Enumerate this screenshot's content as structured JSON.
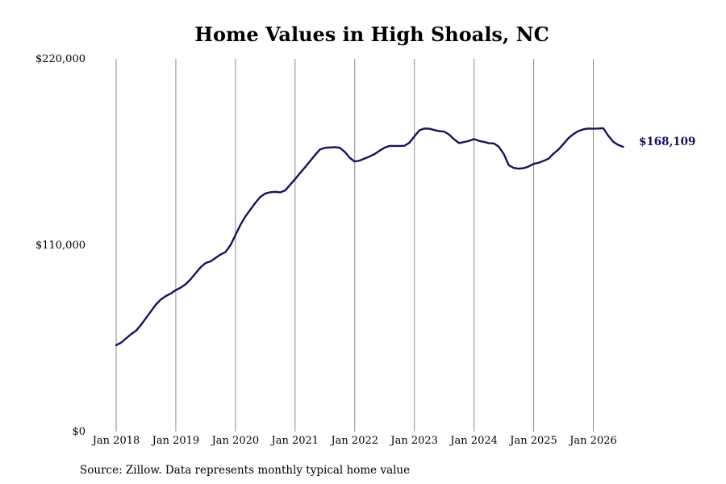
{
  "chart_data": {
    "type": "line",
    "title": "Home Values in High Shoals, NC",
    "source": "Source: Zillow. Data represents monthly typical home value",
    "ylim": [
      0,
      220000
    ],
    "yticks": [
      {
        "value": 0,
        "label": "$0"
      },
      {
        "value": 110000,
        "label": "$110,000"
      },
      {
        "value": 220000,
        "label": "$220,000"
      }
    ],
    "xticks": [
      {
        "value": "2018-01",
        "label": "Jan 2018"
      },
      {
        "value": "2019-01",
        "label": "Jan 2019"
      },
      {
        "value": "2020-01",
        "label": "Jan 2020"
      },
      {
        "value": "2021-01",
        "label": "Jan 2021"
      },
      {
        "value": "2022-01",
        "label": "Jan 2022"
      },
      {
        "value": "2023-01",
        "label": "Jan 2023"
      },
      {
        "value": "2024-01",
        "label": "Jan 2024"
      },
      {
        "value": "2025-01",
        "label": "Jan 2025"
      },
      {
        "value": "2026-01",
        "label": "Jan 2026"
      }
    ],
    "vertical_grid": true,
    "line_color": "#14145e",
    "end_label": "$168,109",
    "series": [
      {
        "x": [
          "2018-01",
          "2018-02",
          "2018-03",
          "2018-04",
          "2018-05",
          "2018-06",
          "2018-07",
          "2018-08",
          "2018-09",
          "2018-10",
          "2018-11",
          "2018-12",
          "2019-01",
          "2019-02",
          "2019-03",
          "2019-04",
          "2019-05",
          "2019-06",
          "2019-07",
          "2019-08",
          "2019-09",
          "2019-10",
          "2019-11",
          "2019-12",
          "2020-01",
          "2020-02",
          "2020-03",
          "2020-04",
          "2020-05",
          "2020-06",
          "2020-07",
          "2020-08",
          "2020-09",
          "2020-10",
          "2020-11",
          "2020-12",
          "2021-01",
          "2021-02",
          "2021-03",
          "2021-04",
          "2021-05",
          "2021-06",
          "2021-07",
          "2021-08",
          "2021-09",
          "2021-10",
          "2021-11",
          "2021-12",
          "2022-01",
          "2022-02",
          "2022-03",
          "2022-04",
          "2022-05",
          "2022-06",
          "2022-07",
          "2022-08",
          "2022-09",
          "2022-10",
          "2022-11",
          "2022-12",
          "2023-01",
          "2023-02",
          "2023-03",
          "2023-04",
          "2023-05",
          "2023-06",
          "2023-07",
          "2023-08",
          "2023-09",
          "2023-10",
          "2023-11",
          "2023-12",
          "2024-01",
          "2024-02",
          "2024-03",
          "2024-04",
          "2024-05",
          "2024-06",
          "2024-07",
          "2024-08",
          "2024-09",
          "2024-10",
          "2024-11",
          "2024-12",
          "2025-01",
          "2025-02",
          "2025-03",
          "2025-04",
          "2025-05",
          "2025-06",
          "2025-07",
          "2025-08",
          "2025-09",
          "2025-10",
          "2025-11",
          "2025-12",
          "2026-01",
          "2026-02",
          "2026-03",
          "2026-04",
          "2026-05",
          "2026-06",
          "2026-07"
        ],
        "values": [
          51000,
          52500,
          55000,
          57500,
          59500,
          63000,
          67000,
          71000,
          75000,
          78000,
          80000,
          81500,
          83500,
          85000,
          87000,
          90000,
          93500,
          97000,
          99500,
          100500,
          102500,
          104500,
          106000,
          110000,
          116000,
          122000,
          127000,
          131000,
          135000,
          138500,
          140500,
          141300,
          141500,
          141200,
          142300,
          145700,
          149000,
          152600,
          156000,
          159600,
          163200,
          166500,
          167500,
          167700,
          167900,
          167500,
          165100,
          161600,
          159400,
          160000,
          161200,
          162400,
          163800,
          165800,
          167600,
          168600,
          168600,
          168600,
          168700,
          170500,
          174200,
          177800,
          178900,
          178800,
          178000,
          177300,
          177100,
          175300,
          172500,
          170300,
          170900,
          171600,
          172700,
          171600,
          171000,
          170200,
          170100,
          168100,
          163800,
          157200,
          155600,
          155200,
          155500,
          156500,
          158000,
          158700,
          159800,
          161100,
          164100,
          166500,
          169800,
          173200,
          175600,
          177400,
          178400,
          178900,
          178800,
          178900,
          179100,
          174700,
          171100,
          169200,
          168109
        ]
      }
    ]
  }
}
